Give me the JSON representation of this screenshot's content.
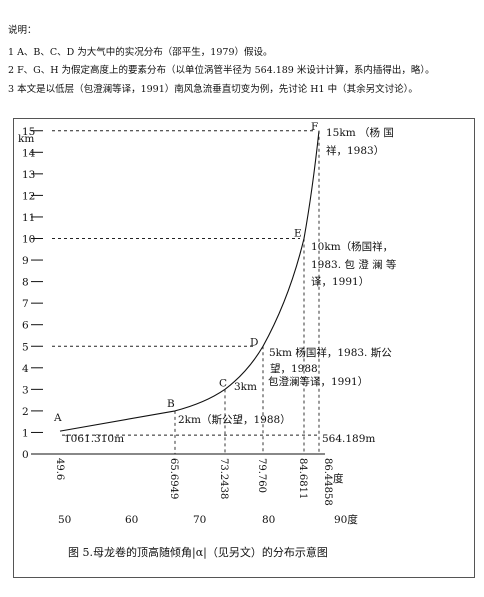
{
  "notes": {
    "heading": "说明：",
    "line1": "1 A、B、C、D 为大气中的实况分布（邵平生，1979）假设。",
    "line2": "2 F、G、H 为假定高度上的要素分布（以单位涡管半径为 564.189 米设计计算，系内插得出，略）。",
    "line3": "3 本文是以低层（包澄澜等译，1991）南风急流垂直切变为例，先讨论 H1 中（其余另文讨论）。"
  },
  "chart_data": {
    "type": "line",
    "ylabel": "km",
    "xlabel_unit": "度",
    "yticks": [
      "0",
      "1",
      "2",
      "3",
      "4",
      "5",
      "6",
      "7",
      "8",
      "9",
      "10",
      "11",
      "12",
      "13",
      "14",
      "15"
    ],
    "ylim": [
      0,
      15.5
    ],
    "xlim": [
      49.6,
      90
    ],
    "xticks": [
      "50",
      "60",
      "70",
      "80",
      "90度"
    ],
    "x_vertical_labels": [
      "49.6",
      "65.6949",
      "73.2438",
      "79.760",
      "84.6811",
      "86.44858"
    ],
    "points": [
      {
        "name": "A",
        "x": 49.6,
        "y": 1.061
      },
      {
        "name": "B",
        "x": 65.6949,
        "y": 2
      },
      {
        "name": "C",
        "x": 73.2438,
        "y": 3
      },
      {
        "name": "D",
        "x": 79.76,
        "y": 5
      },
      {
        "name": "E",
        "x": 84.6811,
        "y": 10
      },
      {
        "name": "F",
        "x": 86.44858,
        "y": 15
      }
    ],
    "annotations": {
      "a": "1061.310m",
      "a_right": "564.189m",
      "b": "2km（斯公望，1988）",
      "c": "3km",
      "c2": "包澄澜等译，1991）",
      "d1": "5km 杨国祥，1983. 斯公",
      "d2": "望，1988",
      "e1": "10km（杨国祥，",
      "e2": "1983. 包 澄 澜 等",
      "e3": "译，1991）",
      "f1": "15km （杨 国",
      "f2": "祥，1983）"
    }
  },
  "caption": "图 5.母龙卷的顶高随倾角|α|（见另文）的分布示意图"
}
